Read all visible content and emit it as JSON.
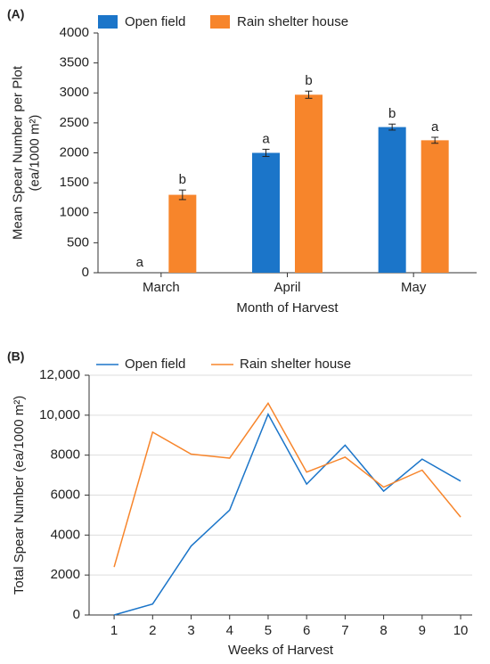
{
  "chart_data": [
    {
      "type": "bar",
      "panel": "(A)",
      "xlabel": "Month of Harvest",
      "ylabel": [
        "Mean Spear Number per Plot",
        "(ea/1000 m²)"
      ],
      "categories": [
        "March",
        "April",
        "May"
      ],
      "series": [
        {
          "name": "Open field",
          "color": "#1b75c9",
          "values": [
            0,
            2000,
            2430
          ],
          "errors": [
            0,
            60,
            50
          ],
          "letters": [
            "a",
            "a",
            "b"
          ]
        },
        {
          "name": "Rain shelter house",
          "color": "#f7852b",
          "values": [
            1300,
            2970,
            2210
          ],
          "errors": [
            80,
            60,
            50
          ],
          "letters": [
            "b",
            "b",
            "a"
          ]
        }
      ],
      "ylim": [
        0,
        4000
      ],
      "yticks": [
        0,
        500,
        1000,
        1500,
        2000,
        2500,
        3000,
        3500,
        4000
      ],
      "grid": false
    },
    {
      "type": "line",
      "panel": "(B)",
      "xlabel": "Weeks of Harvest",
      "ylabel": [
        "Total Spear Number (ea/1000 m²)"
      ],
      "x": [
        1,
        2,
        3,
        4,
        5,
        6,
        7,
        8,
        9,
        10
      ],
      "series": [
        {
          "name": "Open field",
          "color": "#1b75c9",
          "values": [
            0,
            550,
            3450,
            5250,
            10050,
            6550,
            8500,
            6200,
            7800,
            6700
          ]
        },
        {
          "name": "Rain shelter house",
          "color": "#f7852b",
          "values": [
            2400,
            9150,
            8050,
            7850,
            10600,
            7150,
            7900,
            6400,
            7250,
            4900
          ]
        }
      ],
      "xlim": [
        0.35,
        10.3
      ],
      "xticks": [
        1,
        2,
        3,
        4,
        5,
        6,
        7,
        8,
        9,
        10
      ],
      "ylim": [
        0,
        12000
      ],
      "yticks": [
        0,
        2000,
        4000,
        6000,
        8000,
        {
          "value": 10000,
          "label": "10,000"
        },
        {
          "value": 12000,
          "label": "12,000"
        }
      ],
      "grid": true
    }
  ]
}
